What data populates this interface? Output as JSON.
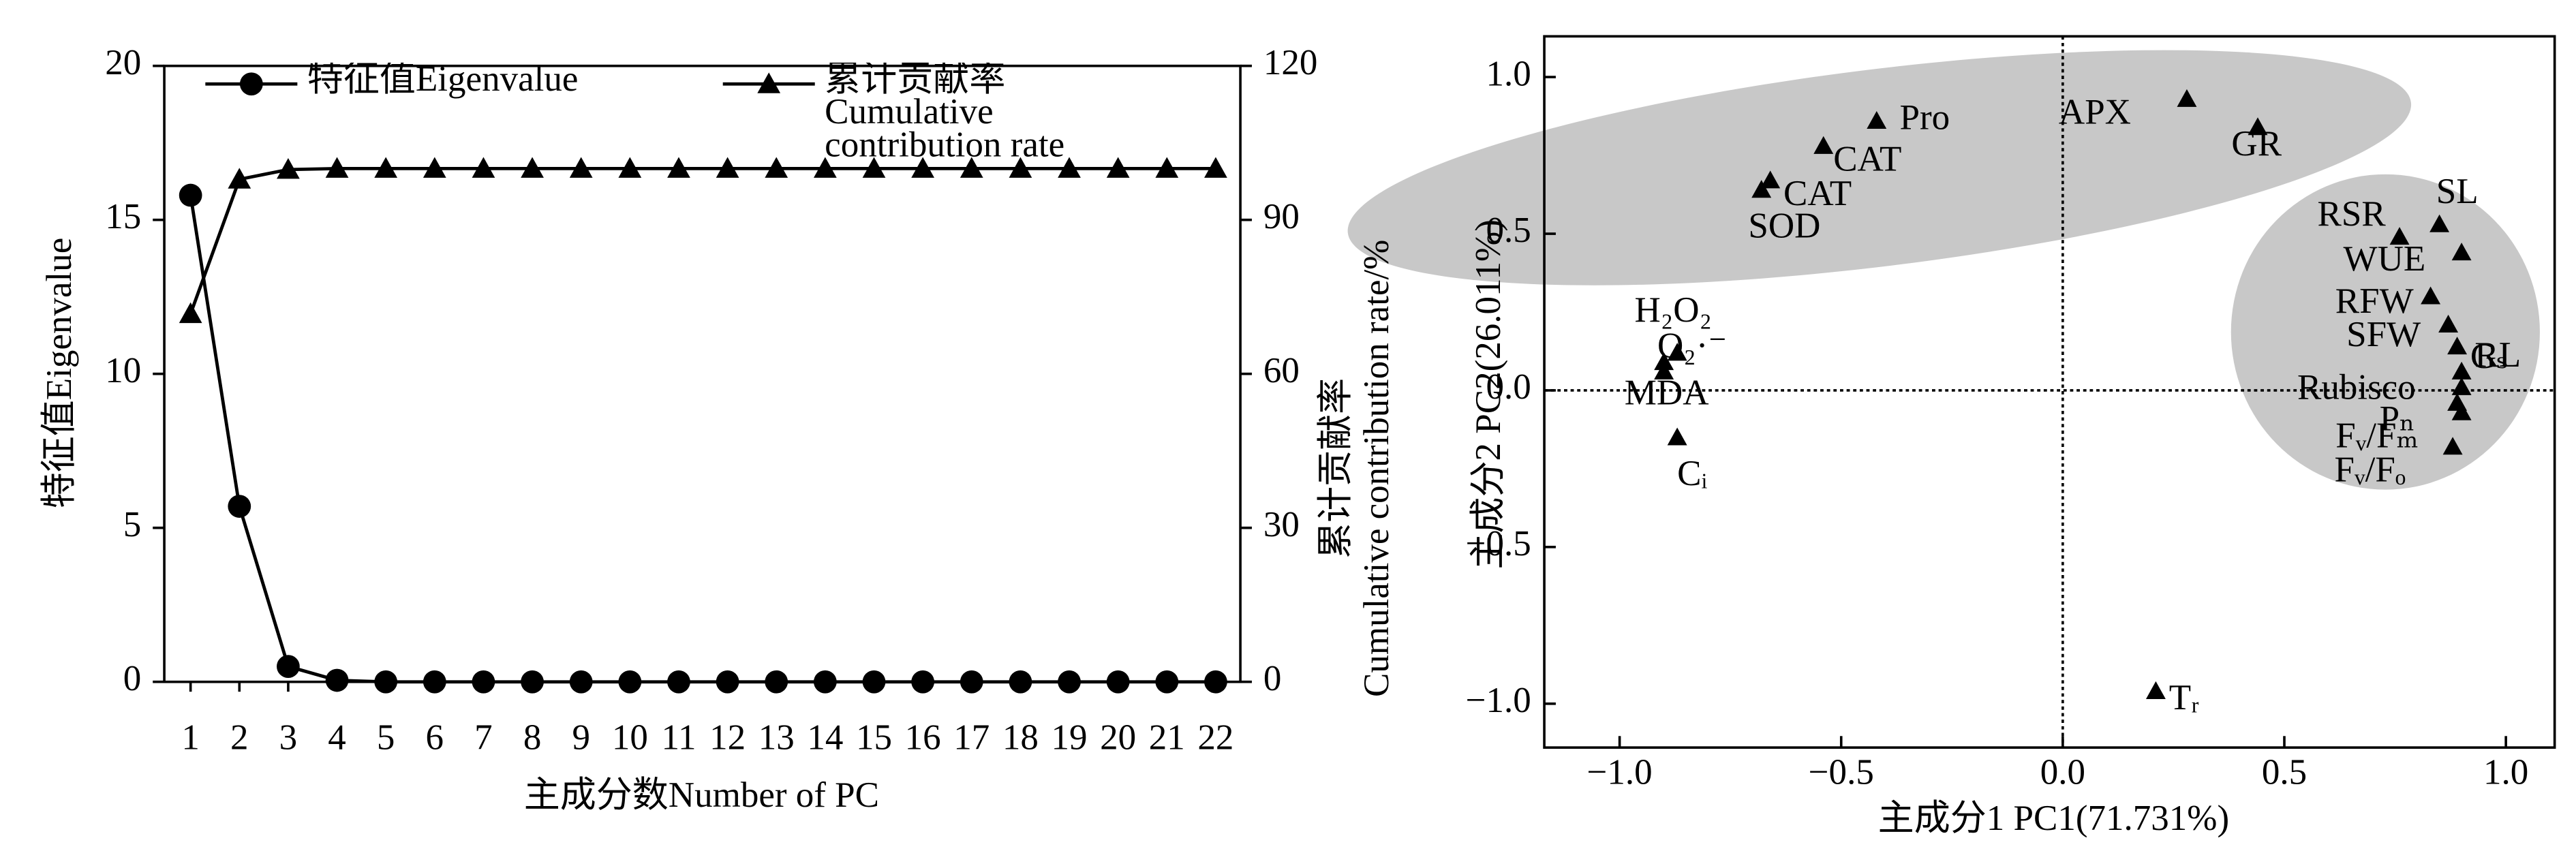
{
  "chart_data": [
    {
      "type": "line",
      "xlabel": "主成分数Number of PC",
      "ylabel": "特征值Eigenvalue",
      "y2label": [
        "累计贡献率",
        "Cumulative contribution rate/%"
      ],
      "categories": [
        "1",
        "2",
        "3",
        "4",
        "5",
        "6",
        "7",
        "8",
        "9",
        "10",
        "11",
        "12",
        "13",
        "14",
        "15",
        "16",
        "17",
        "18",
        "19",
        "20",
        "21",
        "22"
      ],
      "ylim": [
        0,
        20
      ],
      "yticks": [
        0,
        5,
        10,
        15,
        20
      ],
      "y2lim": [
        0,
        120
      ],
      "y2ticks": [
        0,
        30,
        60,
        90,
        120
      ],
      "series": [
        {
          "name": "特征值Eigenvalue",
          "color": "#000000",
          "marker": "circle",
          "values": [
            15.8,
            5.7,
            0.5,
            0.05,
            0,
            0,
            0,
            0,
            0,
            0,
            0,
            0,
            0,
            0,
            0,
            0,
            0,
            0,
            0,
            0,
            0,
            0
          ]
        },
        {
          "name": "累计贡献率 Cumulative contribution rate",
          "color": "#000000",
          "marker": "triangle",
          "axis": "y2",
          "values": [
            71.7,
            97.9,
            99.8,
            100,
            100,
            100,
            100,
            100,
            100,
            100,
            100,
            100,
            100,
            100,
            100,
            100,
            100,
            100,
            100,
            100,
            100,
            100
          ]
        }
      ]
    },
    {
      "type": "scatter",
      "xlabel": "主成分1 PC1(71.731%)",
      "ylabel": "主成分2 PC2(26.011%)",
      "xlim": [
        -1.17,
        1.11
      ],
      "ylim": [
        -1.14,
        1.13
      ],
      "xticks": [
        {
          "value": -1.0,
          "label": "−1.0"
        },
        {
          "value": -0.5,
          "label": "−0.5"
        },
        {
          "value": 0.0,
          "label": "0.0"
        },
        {
          "value": 0.5,
          "label": "0.5"
        },
        {
          "value": 1.0,
          "label": "1.0"
        }
      ],
      "yticks": [
        {
          "value": -1.0,
          "label": "−1.0"
        },
        {
          "value": -0.5,
          "label": "−0.5"
        },
        {
          "value": 0.0,
          "label": "0.0"
        },
        {
          "value": 0.5,
          "label": "0.5"
        },
        {
          "value": 1.0,
          "label": "1.0"
        }
      ],
      "color": "#000000",
      "labels": [
        "Pro",
        "CAT",
        "CAT",
        "SOD",
        "APX",
        "GR",
        "SL",
        "RSR",
        "WUE",
        "RFW",
        "SFW",
        "Gₛ",
        "RL",
        "Rubisco",
        "Fᵥ/Fₘ",
        "Pₙ",
        "Fᵥ/Fₒ",
        "H₂O₂",
        "O₂·⁻",
        "MDA",
        "Cᵢ",
        "Tᵣ"
      ],
      "x": [
        -0.42,
        -0.54,
        -0.66,
        -0.68,
        0.28,
        0.44,
        0.85,
        0.76,
        0.9,
        0.83,
        0.87,
        0.89,
        0.9,
        0.9,
        0.89,
        0.9,
        0.88,
        -0.87,
        -0.9,
        -0.9,
        -0.87,
        0.21
      ],
      "values": [
        0.86,
        0.78,
        0.67,
        0.64,
        0.93,
        0.84,
        0.53,
        0.49,
        0.44,
        0.3,
        0.21,
        0.14,
        0.06,
        0.01,
        -0.04,
        -0.07,
        -0.18,
        0.12,
        0.09,
        0.06,
        -0.15,
        -0.96
      ]
    }
  ]
}
